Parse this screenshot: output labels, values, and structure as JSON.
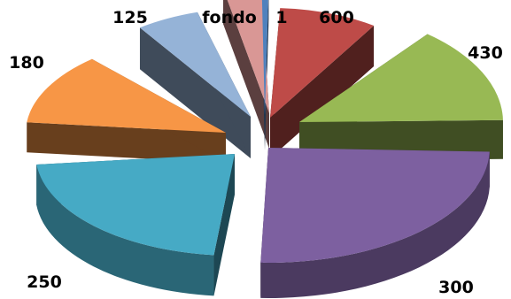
{
  "chart_data": {
    "type": "pie",
    "style": "3d-exploded",
    "slices": [
      {
        "label": "600",
        "color": "#be4b48",
        "rank": 0
      },
      {
        "label": "430",
        "color": "#98b954",
        "rank": 2
      },
      {
        "label": "300",
        "color": "#7d60a0",
        "rank": 6
      },
      {
        "label": "250",
        "color": "#46aac5",
        "rank": 5
      },
      {
        "label": "180",
        "color": "#f79646",
        "rank": 4
      },
      {
        "label": "125",
        "color": "#95b3d7",
        "rank": 3
      },
      {
        "label": "fondo",
        "color": "#d99795",
        "rank": 1
      },
      {
        "label": "1",
        "color": "#4f81bd",
        "rank": 7
      }
    ]
  }
}
